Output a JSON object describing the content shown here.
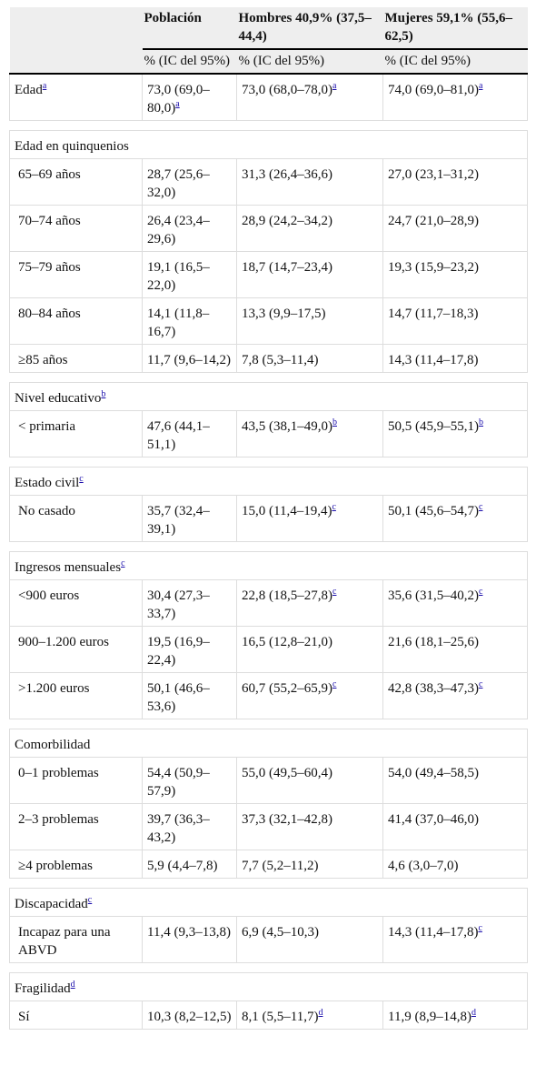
{
  "header": {
    "columns": [
      "Población",
      "Hombres 40,9% (37,5–44,4)",
      "Mujeres 59,1% (55,6–62,5)"
    ],
    "subheader": [
      "% (IC del 95%)",
      "% (IC del 95%)",
      "% (IC del 95%)"
    ]
  },
  "table": {
    "first_row": {
      "cells": [
        {
          "text": "Edad",
          "sup": "a"
        },
        {
          "text": "73,0 (69,0–80,0)",
          "sup": "a"
        },
        {
          "text": "73,0 (68,0–78,0)",
          "sup": "a"
        },
        {
          "text": "74,0 (69,0–81,0)",
          "sup": "a"
        }
      ]
    },
    "sections": [
      {
        "title": {
          "text": "Edad en quinquenios"
        },
        "rows": [
          {
            "cells": [
              {
                "text": "65–69 años"
              },
              {
                "text": "28,7 (25,6–32,0)"
              },
              {
                "text": "31,3 (26,4–36,6)"
              },
              {
                "text": "27,0 (23,1–31,2)"
              }
            ]
          },
          {
            "cells": [
              {
                "text": "70–74 años"
              },
              {
                "text": "26,4 (23,4–29,6)"
              },
              {
                "text": "28,9 (24,2–34,2)"
              },
              {
                "text": "24,7 (21,0–28,9)"
              }
            ]
          },
          {
            "cells": [
              {
                "text": "75–79 años"
              },
              {
                "text": "19,1 (16,5–22,0)"
              },
              {
                "text": "18,7 (14,7–23,4)"
              },
              {
                "text": "19,3 (15,9–23,2)"
              }
            ]
          },
          {
            "cells": [
              {
                "text": "80–84 años"
              },
              {
                "text": "14,1 (11,8–16,7)"
              },
              {
                "text": "13,3 (9,9–17,5)"
              },
              {
                "text": "14,7 (11,7–18,3)"
              }
            ]
          },
          {
            "cells": [
              {
                "text": "≥85 años"
              },
              {
                "text": "11,7 (9,6–14,2)"
              },
              {
                "text": "7,8 (5,3–11,4)"
              },
              {
                "text": "14,3 (11,4–17,8)"
              }
            ]
          }
        ]
      },
      {
        "title": {
          "text": "Nivel educativo",
          "sup": "b"
        },
        "rows": [
          {
            "cells": [
              {
                "text": "< primaria"
              },
              {
                "text": "47,6 (44,1–51,1)"
              },
              {
                "text": "43,5 (38,1–49,0)",
                "sup": "b"
              },
              {
                "text": "50,5 (45,9–55,1)",
                "sup": "b"
              }
            ]
          }
        ]
      },
      {
        "title": {
          "text": "Estado civil",
          "sup": "c"
        },
        "rows": [
          {
            "cells": [
              {
                "text": "No casado"
              },
              {
                "text": "35,7 (32,4–39,1)"
              },
              {
                "text": "15,0 (11,4–19,4)",
                "sup": "c"
              },
              {
                "text": "50,1 (45,6–54,7)",
                "sup": "c"
              }
            ]
          }
        ]
      },
      {
        "title": {
          "text": "Ingresos mensuales",
          "sup": "c"
        },
        "rows": [
          {
            "cells": [
              {
                "text": "<900 euros"
              },
              {
                "text": "30,4 (27,3–33,7)"
              },
              {
                "text": "22,8 (18,5–27,8)",
                "sup": "c"
              },
              {
                "text": "35,6 (31,5–40,2)",
                "sup": "c"
              }
            ]
          },
          {
            "cells": [
              {
                "text": "900–1.200 euros"
              },
              {
                "text": "19,5 (16,9–22,4)"
              },
              {
                "text": "16,5 (12,8–21,0)"
              },
              {
                "text": "21,6 (18,1–25,6)"
              }
            ]
          },
          {
            "cells": [
              {
                "text": ">1.200 euros"
              },
              {
                "text": "50,1 (46,6–53,6)"
              },
              {
                "text": "60,7 (55,2–65,9)",
                "sup": "c"
              },
              {
                "text": "42,8 (38,3–47,3)",
                "sup": "c"
              }
            ]
          }
        ]
      },
      {
        "title": {
          "text": "Comorbilidad"
        },
        "rows": [
          {
            "cells": [
              {
                "text": "0–1 problemas"
              },
              {
                "text": "54,4 (50,9–57,9)"
              },
              {
                "text": "55,0 (49,5–60,4)"
              },
              {
                "text": "54,0 (49,4–58,5)"
              }
            ]
          },
          {
            "cells": [
              {
                "text": "2–3 problemas"
              },
              {
                "text": "39,7 (36,3–43,2)"
              },
              {
                "text": "37,3 (32,1–42,8)"
              },
              {
                "text": "41,4 (37,0–46,0)"
              }
            ]
          },
          {
            "cells": [
              {
                "text": "≥4 problemas"
              },
              {
                "text": "5,9 (4,4–7,8)"
              },
              {
                "text": "7,7 (5,2–11,2)"
              },
              {
                "text": "4,6 (3,0–7,0)"
              }
            ]
          }
        ]
      },
      {
        "title": {
          "text": "Discapacidad",
          "sup": "c"
        },
        "rows": [
          {
            "cells": [
              {
                "text": "Incapaz para una ABVD"
              },
              {
                "text": "11,4 (9,3–13,8)"
              },
              {
                "text": "6,9 (4,5–10,3)"
              },
              {
                "text": "14,3 (11,4–17,8)",
                "sup": "c"
              }
            ]
          }
        ]
      },
      {
        "title": {
          "text": "Fragilidad",
          "sup": "d"
        },
        "rows": [
          {
            "cells": [
              {
                "text": "Sí"
              },
              {
                "text": "10,3 (8,2–12,5)"
              },
              {
                "text": "8,1 (5,5–11,7)",
                "sup": "d"
              },
              {
                "text": "11,9 (8,9–14,8)",
                "sup": "d"
              }
            ]
          }
        ]
      }
    ]
  }
}
